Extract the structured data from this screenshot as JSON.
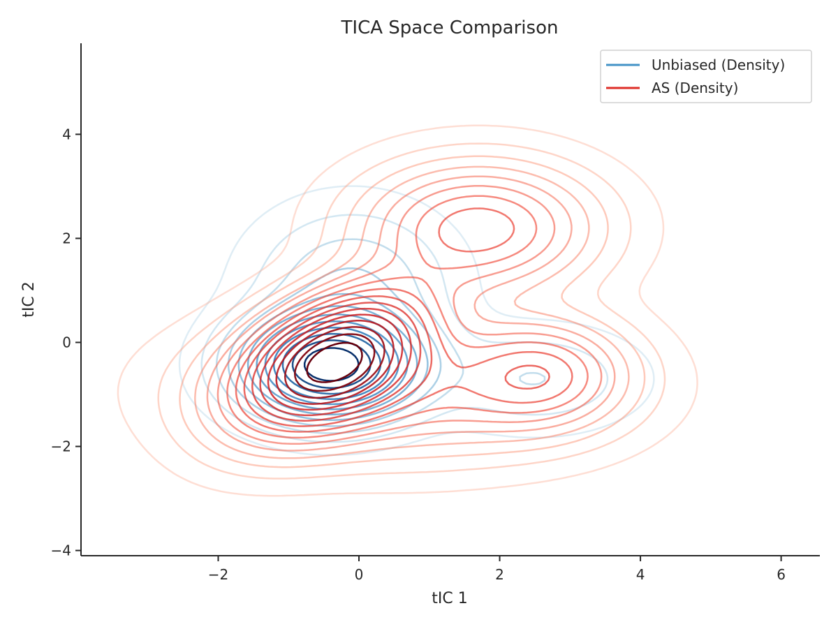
{
  "chart_data": {
    "type": "contour",
    "title": "TICA Space Comparison",
    "xlabel": "tIC 1",
    "ylabel": "tIC 2",
    "xlim": [
      -3.95,
      6.55
    ],
    "ylim": [
      -4.1,
      5.75
    ],
    "xticks": [
      -2,
      0,
      2,
      4,
      6
    ],
    "yticks": [
      -4,
      -2,
      0,
      2,
      4
    ],
    "xtick_labels": [
      "−2",
      "0",
      "2",
      "4",
      "6"
    ],
    "ytick_labels": [
      "−4",
      "−2",
      "0",
      "2",
      "4"
    ],
    "grid": false,
    "legend_position": "top-right",
    "series": [
      {
        "name": "Unbiased (Density)",
        "color": "#4292c6",
        "colormap": "Blues",
        "levels": 12,
        "modes": [
          {
            "x": -0.4,
            "y": -0.45,
            "sx": 0.75,
            "sy": 0.6,
            "rho": 0.0,
            "w": 1.0
          },
          {
            "x": -0.1,
            "y": 1.1,
            "sx": 0.85,
            "sy": 0.9,
            "rho": 0.0,
            "w": 0.16
          },
          {
            "x": 2.5,
            "y": -0.7,
            "sx": 0.9,
            "sy": 0.6,
            "rho": 0.0,
            "w": 0.1
          }
        ]
      },
      {
        "name": "AS (Density)",
        "color": "#de2d26",
        "colormap": "Reds",
        "levels": 16,
        "modes": [
          {
            "x": -0.35,
            "y": -0.3,
            "sx": 0.85,
            "sy": 0.85,
            "rho": 0.45,
            "w": 1.0
          },
          {
            "x": 1.7,
            "y": 2.2,
            "sx": 1.0,
            "sy": 0.75,
            "rho": 0.0,
            "w": 0.4
          },
          {
            "x": 2.6,
            "y": -0.6,
            "sx": 0.75,
            "sy": 0.65,
            "rho": 0.0,
            "w": 0.32
          },
          {
            "x": 0.6,
            "y": -0.9,
            "sx": 1.6,
            "sy": 0.8,
            "rho": 0.0,
            "w": 0.28
          }
        ]
      }
    ]
  }
}
